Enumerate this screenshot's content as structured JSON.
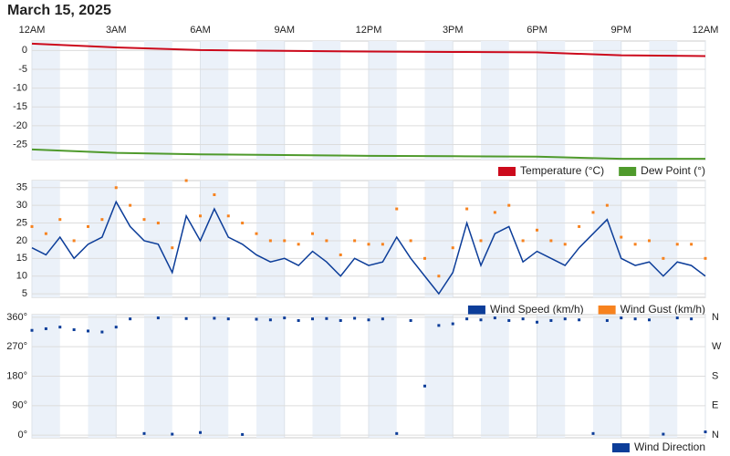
{
  "title": "March 15, 2025",
  "chart_data": [
    {
      "type": "line",
      "x": [
        0,
        3,
        6,
        9,
        12,
        15,
        18,
        21,
        24
      ],
      "xlim": [
        0,
        24
      ],
      "xticks": [
        {
          "value": 0,
          "label": "12AM"
        },
        {
          "value": 3,
          "label": "3AM"
        },
        {
          "value": 6,
          "label": "6AM"
        },
        {
          "value": 9,
          "label": "9AM"
        },
        {
          "value": 12,
          "label": "12PM"
        },
        {
          "value": 15,
          "label": "3PM"
        },
        {
          "value": 18,
          "label": "6PM"
        },
        {
          "value": 21,
          "label": "9PM"
        },
        {
          "value": 24,
          "label": "12AM"
        }
      ],
      "ylim": [
        -29,
        2.5
      ],
      "yticks": [
        0,
        -5,
        -10,
        -15,
        -20,
        -25
      ],
      "series": [
        {
          "name": "Temperature (°C)",
          "color": "#cc0a1c",
          "values": [
            1.8,
            0.8,
            0.1,
            -0.1,
            -0.3,
            -0.4,
            -0.5,
            -1.3,
            -1.5
          ]
        },
        {
          "name": "Dew Point (°)",
          "color": "#4f9a2c",
          "values": [
            -26.3,
            -27.2,
            -27.6,
            -27.8,
            -28,
            -28.1,
            -28.2,
            -28.8,
            -28.8
          ]
        }
      ]
    },
    {
      "type": "line",
      "x": [
        0,
        0.5,
        1,
        1.5,
        2,
        2.5,
        3,
        3.5,
        4,
        4.5,
        5,
        5.5,
        6,
        6.5,
        7,
        7.5,
        8,
        8.5,
        9,
        9.5,
        10,
        10.5,
        11,
        11.5,
        12,
        12.5,
        13,
        13.5,
        14,
        14.5,
        15,
        15.5,
        16,
        16.5,
        17,
        17.5,
        18,
        18.5,
        19,
        19.5,
        20,
        20.5,
        21,
        21.5,
        22,
        22.5,
        23,
        23.5,
        24
      ],
      "xlim": [
        0,
        24
      ],
      "ylim": [
        4,
        37
      ],
      "yticks": [
        5,
        10,
        15,
        20,
        25,
        30,
        35
      ],
      "series": [
        {
          "name": "Wind Speed (km/h)",
          "color": "#0c3d99",
          "values": [
            18,
            16,
            21,
            15,
            19,
            21,
            31,
            24,
            20,
            19,
            11,
            27,
            20,
            29,
            21,
            19,
            16,
            14,
            15,
            13,
            17,
            14,
            10,
            15,
            13,
            14,
            21,
            15,
            10,
            5,
            11,
            25,
            13,
            22,
            24,
            14,
            17,
            15,
            13,
            18,
            22,
            26,
            15,
            13,
            14,
            10,
            14,
            13,
            10
          ]
        },
        {
          "name": "Wind Gust (km/h)",
          "color": "#f7821e",
          "values": [
            24,
            22,
            26,
            20,
            24,
            26,
            35,
            30,
            26,
            25,
            18,
            37,
            27,
            33,
            27,
            25,
            22,
            20,
            20,
            19,
            22,
            20,
            16,
            20,
            19,
            19,
            29,
            20,
            15,
            10,
            18,
            29,
            20,
            28,
            30,
            20,
            23,
            20,
            19,
            24,
            28,
            30,
            21,
            19,
            20,
            15,
            19,
            19,
            15
          ]
        }
      ]
    },
    {
      "type": "scatter",
      "x": [
        0,
        0.5,
        1,
        1.5,
        2,
        2.5,
        3,
        3.5,
        4,
        4.5,
        5,
        5.5,
        6,
        6.5,
        7,
        7.5,
        8,
        8.5,
        9,
        9.5,
        10,
        10.5,
        11,
        11.5,
        12,
        12.5,
        13,
        13.5,
        14,
        14.5,
        15,
        15.5,
        16,
        16.5,
        17,
        17.5,
        18,
        18.5,
        19,
        19.5,
        20,
        20.5,
        21,
        21.5,
        22,
        22.5,
        23,
        23.5,
        24
      ],
      "xlim": [
        0,
        24
      ],
      "ylim": [
        -8,
        368
      ],
      "yticks": [
        {
          "value": 360,
          "label": "360°"
        },
        {
          "value": 270,
          "label": "270°"
        },
        {
          "value": 180,
          "label": "180°"
        },
        {
          "value": 90,
          "label": "90°"
        },
        {
          "value": 0,
          "label": "0°"
        }
      ],
      "y2lim": [
        -8,
        368
      ],
      "y2ticks": [
        {
          "value": 360,
          "label": "N"
        },
        {
          "value": 270,
          "label": "W"
        },
        {
          "value": 180,
          "label": "S"
        },
        {
          "value": 90,
          "label": "E"
        },
        {
          "value": 0,
          "label": "N"
        }
      ],
      "series": [
        {
          "name": "Wind Direction",
          "color": "#0c3d99",
          "values": [
            320,
            325,
            330,
            322,
            318,
            315,
            330,
            355,
            5,
            358,
            3,
            356,
            8,
            357,
            355,
            2,
            354,
            352,
            358,
            350,
            355,
            356,
            350,
            357,
            352,
            355,
            5,
            350,
            150,
            335,
            340,
            355,
            352,
            358,
            350,
            355,
            345,
            350,
            355,
            352,
            5,
            350,
            358,
            355,
            352,
            3,
            358,
            355,
            10
          ]
        }
      ]
    }
  ]
}
